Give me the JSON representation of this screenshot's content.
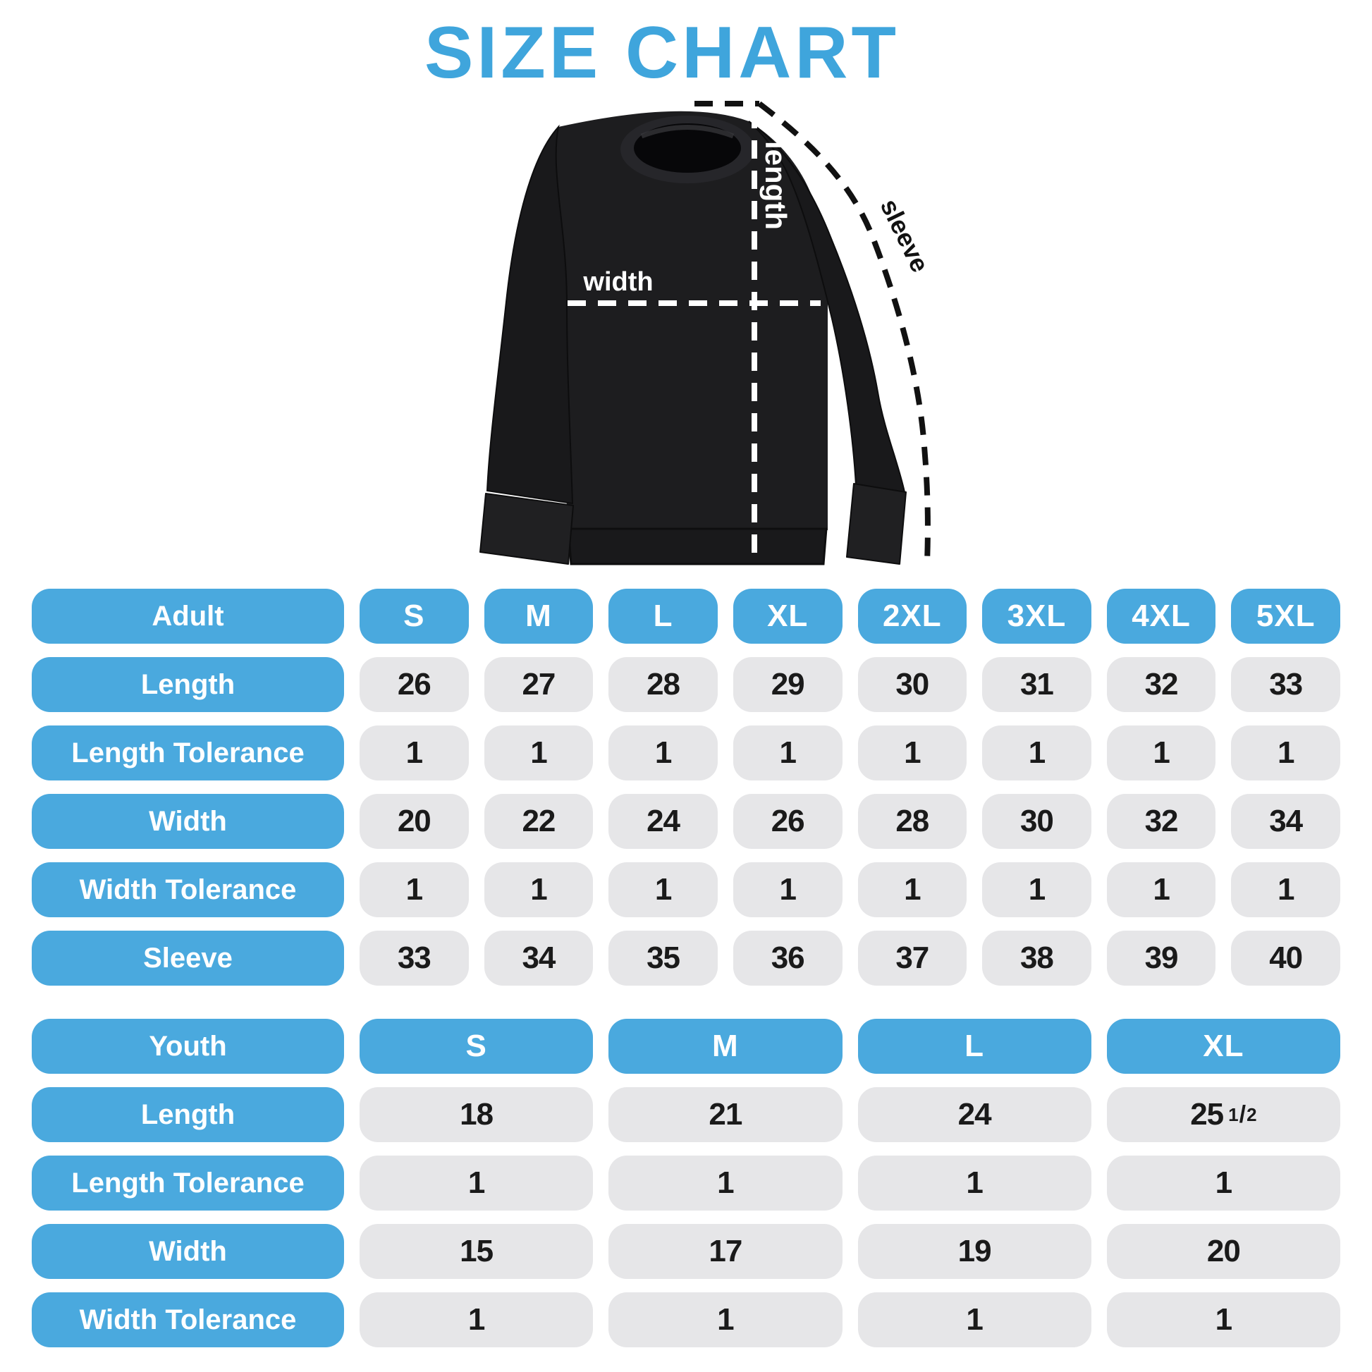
{
  "title": "SIZE CHART",
  "colors": {
    "blue": "#4AA9DE",
    "title_blue": "#3FA5DC",
    "cell_gray": "#E6E6E8",
    "cell_text": "#1A1A1A",
    "header_text": "#FFFFFF"
  },
  "diagram": {
    "labels": {
      "length": "length",
      "width": "width",
      "sleeve": "sleeve"
    }
  },
  "adult_table": {
    "header": {
      "label": "Adult",
      "sizes": [
        "S",
        "M",
        "L",
        "XL",
        "2XL",
        "3XL",
        "4XL",
        "5XL"
      ]
    },
    "rows": [
      {
        "label": "Length",
        "values": [
          "26",
          "27",
          "28",
          "29",
          "30",
          "31",
          "32",
          "33"
        ]
      },
      {
        "label": "Length Tolerance",
        "values": [
          "1",
          "1",
          "1",
          "1",
          "1",
          "1",
          "1",
          "1"
        ]
      },
      {
        "label": "Width",
        "values": [
          "20",
          "22",
          "24",
          "26",
          "28",
          "30",
          "32",
          "34"
        ]
      },
      {
        "label": "Width Tolerance",
        "values": [
          "1",
          "1",
          "1",
          "1",
          "1",
          "1",
          "1",
          "1"
        ]
      },
      {
        "label": "Sleeve",
        "values": [
          "33",
          "34",
          "35",
          "36",
          "37",
          "38",
          "39",
          "40"
        ]
      }
    ]
  },
  "youth_table": {
    "header": {
      "label": "Youth",
      "sizes": [
        "S",
        "M",
        "L",
        "XL"
      ]
    },
    "rows": [
      {
        "label": "Length",
        "values": [
          "18",
          "21",
          "24",
          "25 1/2"
        ]
      },
      {
        "label": "Length Tolerance",
        "values": [
          "1",
          "1",
          "1",
          "1"
        ]
      },
      {
        "label": "Width",
        "values": [
          "15",
          "17",
          "19",
          "20"
        ]
      },
      {
        "label": "Width Tolerance",
        "values": [
          "1",
          "1",
          "1",
          "1"
        ]
      }
    ]
  }
}
